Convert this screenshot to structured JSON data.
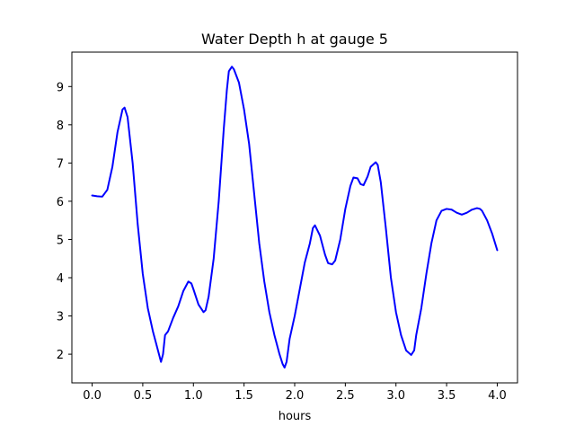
{
  "chart_data": {
    "type": "line",
    "title": "Water Depth h at gauge 5",
    "xlabel": "hours",
    "ylabel": "",
    "xlim": [
      -0.2,
      4.2
    ],
    "ylim": [
      1.25,
      9.9
    ],
    "xticks": [
      0.0,
      0.5,
      1.0,
      1.5,
      2.0,
      2.5,
      3.0,
      3.5,
      4.0
    ],
    "xtick_labels": [
      "0.0",
      "0.5",
      "1.0",
      "1.5",
      "2.0",
      "2.5",
      "3.0",
      "3.5",
      "4.0"
    ],
    "yticks": [
      2,
      3,
      4,
      5,
      6,
      7,
      8,
      9
    ],
    "ytick_labels": [
      "2",
      "3",
      "4",
      "5",
      "6",
      "7",
      "8",
      "9"
    ],
    "grid": false,
    "legend": "none",
    "series": [
      {
        "color": "#0000ff",
        "x": [
          0.0,
          0.05,
          0.1,
          0.15,
          0.2,
          0.25,
          0.3,
          0.32,
          0.35,
          0.4,
          0.45,
          0.5,
          0.55,
          0.6,
          0.65,
          0.68,
          0.7,
          0.72,
          0.75,
          0.8,
          0.85,
          0.9,
          0.95,
          0.98,
          1.0,
          1.05,
          1.1,
          1.12,
          1.15,
          1.2,
          1.25,
          1.3,
          1.33,
          1.35,
          1.38,
          1.4,
          1.45,
          1.5,
          1.55,
          1.6,
          1.65,
          1.7,
          1.75,
          1.8,
          1.85,
          1.88,
          1.9,
          1.92,
          1.95,
          2.0,
          2.05,
          2.1,
          2.15,
          2.18,
          2.2,
          2.25,
          2.3,
          2.33,
          2.37,
          2.4,
          2.45,
          2.5,
          2.55,
          2.58,
          2.62,
          2.65,
          2.68,
          2.72,
          2.75,
          2.8,
          2.82,
          2.85,
          2.9,
          2.95,
          3.0,
          3.05,
          3.1,
          3.15,
          3.18,
          3.2,
          3.25,
          3.3,
          3.35,
          3.4,
          3.45,
          3.5,
          3.55,
          3.6,
          3.65,
          3.7,
          3.75,
          3.8,
          3.83,
          3.85,
          3.9,
          3.95,
          4.0
        ],
        "y": [
          6.15,
          6.13,
          6.12,
          6.3,
          6.9,
          7.8,
          8.4,
          8.45,
          8.2,
          7.0,
          5.4,
          4.1,
          3.2,
          2.6,
          2.1,
          1.8,
          2.0,
          2.5,
          2.6,
          2.95,
          3.25,
          3.65,
          3.9,
          3.85,
          3.7,
          3.3,
          3.1,
          3.15,
          3.5,
          4.5,
          6.0,
          7.9,
          8.9,
          9.4,
          9.52,
          9.45,
          9.1,
          8.4,
          7.5,
          6.2,
          4.9,
          3.9,
          3.1,
          2.5,
          2.0,
          1.75,
          1.65,
          1.8,
          2.4,
          3.0,
          3.7,
          4.4,
          4.9,
          5.3,
          5.37,
          5.1,
          4.6,
          4.38,
          4.35,
          4.45,
          5.0,
          5.8,
          6.4,
          6.62,
          6.6,
          6.45,
          6.42,
          6.65,
          6.9,
          7.02,
          6.95,
          6.5,
          5.3,
          4.0,
          3.1,
          2.5,
          2.1,
          1.98,
          2.1,
          2.5,
          3.2,
          4.1,
          4.9,
          5.5,
          5.75,
          5.8,
          5.78,
          5.7,
          5.65,
          5.7,
          5.78,
          5.82,
          5.8,
          5.75,
          5.5,
          5.15,
          4.72
        ]
      }
    ]
  }
}
